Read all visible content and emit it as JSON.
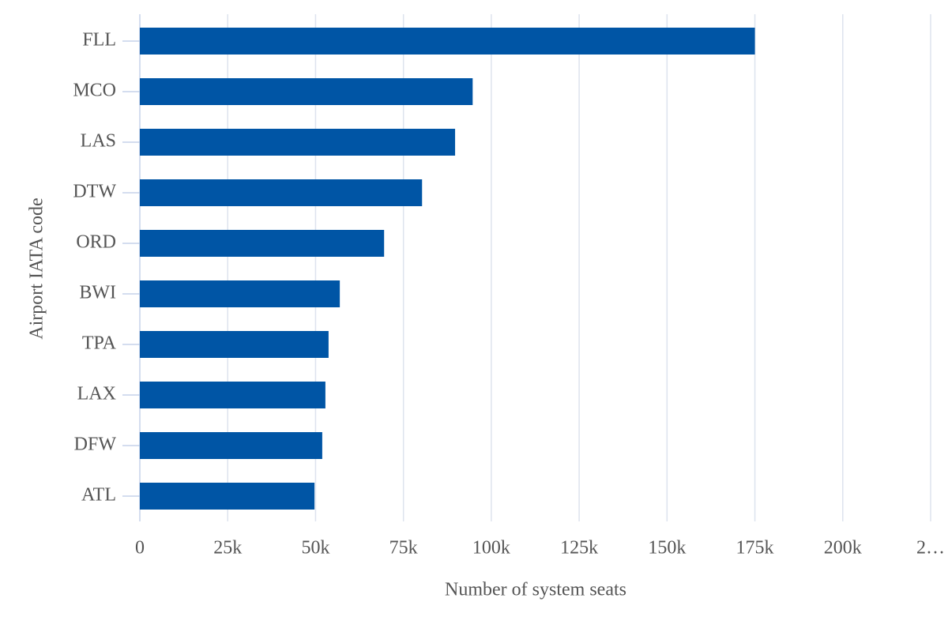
{
  "chart_data": {
    "type": "bar",
    "orientation": "horizontal",
    "x_label": "Number of system seats",
    "y_label": "Airport IATA code",
    "categories": [
      "FLL",
      "MCO",
      "LAS",
      "DTW",
      "ORD",
      "BWI",
      "TPA",
      "LAX",
      "DFW",
      "ATL"
    ],
    "values": [
      175000,
      94700,
      89700,
      80300,
      69500,
      56900,
      53700,
      52800,
      51900,
      49700
    ],
    "color": "#0055a5",
    "xlim": [
      0,
      225000
    ],
    "xticks": [
      0,
      {
        "value": 25000,
        "label": "25k"
      },
      {
        "value": 50000,
        "label": "50k"
      },
      {
        "value": 75000,
        "label": "75k"
      },
      {
        "value": 100000,
        "label": "100k"
      },
      {
        "value": 125000,
        "label": "125k"
      },
      {
        "value": 150000,
        "label": "150k"
      },
      {
        "value": 175000,
        "label": "175k"
      },
      {
        "value": 200000,
        "label": "200k"
      },
      {
        "value": 225000,
        "label": "2…"
      }
    ],
    "grid": true
  }
}
